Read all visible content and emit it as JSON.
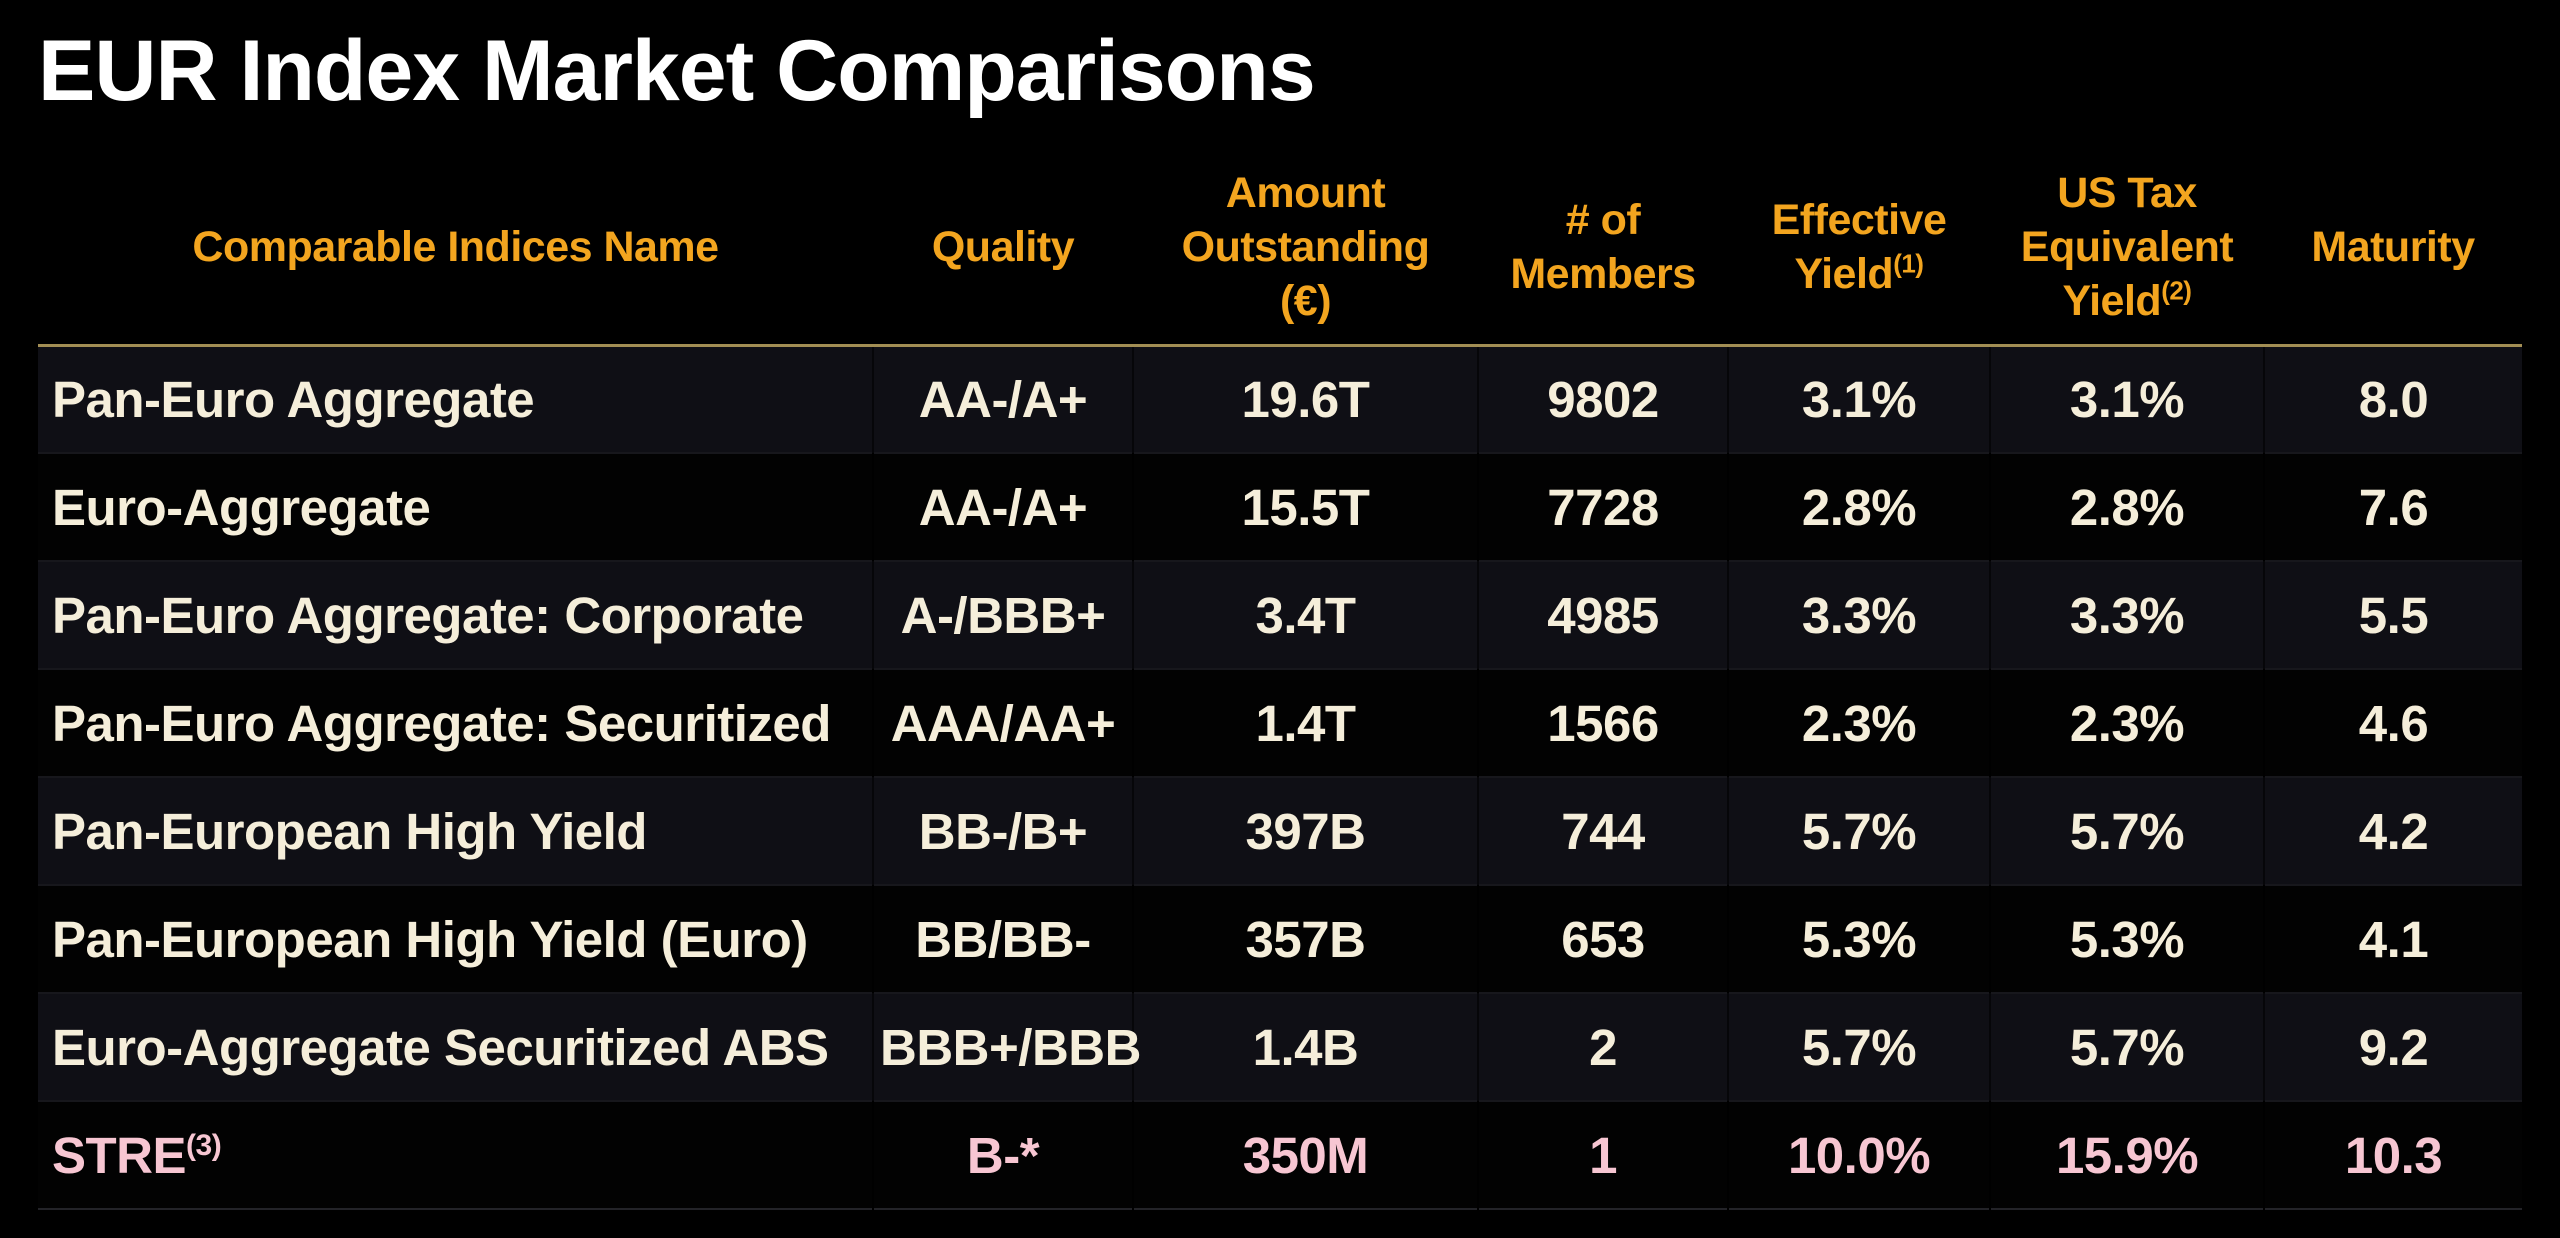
{
  "title": "EUR Index Market Comparisons",
  "table": {
    "columns": [
      {
        "label": "Comparable Indices Name",
        "sup": ""
      },
      {
        "label": "Quality",
        "sup": ""
      },
      {
        "label": "Amount\nOutstanding\n(€)",
        "sup": ""
      },
      {
        "label": "# of\nMembers",
        "sup": ""
      },
      {
        "label": "Effective\nYield",
        "sup": "(1)"
      },
      {
        "label": "US Tax\nEquivalent\nYield",
        "sup": "(2)"
      },
      {
        "label": "Maturity",
        "sup": ""
      }
    ],
    "rows": [
      {
        "name": "Pan-Euro Aggregate",
        "name_sup": "",
        "quality": "AA-/A+",
        "amount": "19.6T",
        "members": "9802",
        "effective_yield": "3.1%",
        "us_tax_equivalent_yield": "3.1%",
        "maturity": "8.0",
        "highlight": false
      },
      {
        "name": "Euro-Aggregate",
        "name_sup": "",
        "quality": "AA-/A+",
        "amount": "15.5T",
        "members": "7728",
        "effective_yield": "2.8%",
        "us_tax_equivalent_yield": "2.8%",
        "maturity": "7.6",
        "highlight": false
      },
      {
        "name": "Pan-Euro Aggregate: Corporate",
        "name_sup": "",
        "quality": "A-/BBB+",
        "amount": "3.4T",
        "members": "4985",
        "effective_yield": "3.3%",
        "us_tax_equivalent_yield": "3.3%",
        "maturity": "5.5",
        "highlight": false
      },
      {
        "name": "Pan-Euro Aggregate: Securitized",
        "name_sup": "",
        "quality": "AAA/AA+",
        "amount": "1.4T",
        "members": "1566",
        "effective_yield": "2.3%",
        "us_tax_equivalent_yield": "2.3%",
        "maturity": "4.6",
        "highlight": false
      },
      {
        "name": "Pan-European High Yield",
        "name_sup": "",
        "quality": "BB-/B+",
        "amount": "397B",
        "members": "744",
        "effective_yield": "5.7%",
        "us_tax_equivalent_yield": "5.7%",
        "maturity": "4.2",
        "highlight": false
      },
      {
        "name": "Pan-European High Yield (Euro)",
        "name_sup": "",
        "quality": "BB/BB-",
        "amount": "357B",
        "members": "653",
        "effective_yield": "5.3%",
        "us_tax_equivalent_yield": "5.3%",
        "maturity": "4.1",
        "highlight": false
      },
      {
        "name": "Euro-Aggregate Securitized ABS",
        "name_sup": "",
        "quality": "BBB+/BBB",
        "amount": "1.4B",
        "members": "2",
        "effective_yield": "5.7%",
        "us_tax_equivalent_yield": "5.7%",
        "maturity": "9.2",
        "highlight": false
      },
      {
        "name": "STRE",
        "name_sup": "(3)",
        "quality": "B-*",
        "amount": "350M",
        "members": "1",
        "effective_yield": "10.0%",
        "us_tax_equivalent_yield": "15.9%",
        "maturity": "10.3",
        "highlight": true
      }
    ]
  },
  "colors": {
    "background": "#000000",
    "title_text": "#FFFFFF",
    "header_text": "#F3A51F",
    "body_text": "#F5EEDA",
    "highlight_text": "#F7C6D2",
    "divider": "#A28E54",
    "row_alt_bg": "#0F0F15",
    "row_bg": "#020202"
  }
}
